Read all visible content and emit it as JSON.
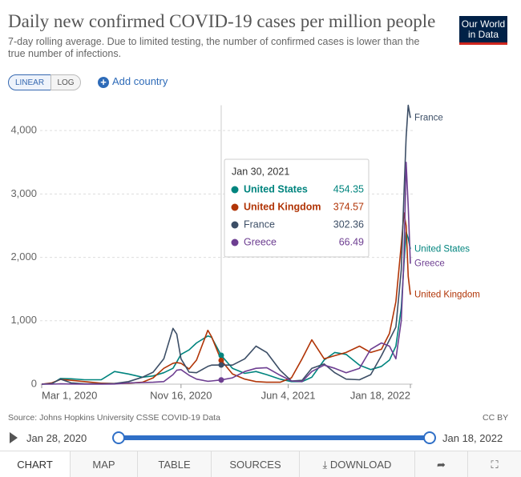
{
  "header": {
    "title": "Daily new confirmed COVID-19 cases per million people",
    "subtitle_lines": [
      "7-day rolling average. Due to limited testing, the number of confirmed cases is lower than the",
      "true number of infections."
    ],
    "logo": [
      "Our World",
      "in Data"
    ]
  },
  "controls": {
    "scale_buttons": [
      "LINEAR",
      "LOG"
    ],
    "add_country": "Add country"
  },
  "chart_data": {
    "type": "line",
    "x": [
      "Mar 1, 2020",
      "Mar 20, 2020",
      "Apr 5, 2020",
      "Apr 25, 2020",
      "May 20, 2020",
      "Jun 20, 2020",
      "Jul 15, 2020",
      "Aug 10, 2020",
      "Sep 5, 2020",
      "Sep 25, 2020",
      "Oct 15, 2020",
      "Nov 1, 2020",
      "Nov 8, 2020",
      "Nov 16, 2020",
      "Dec 1, 2020",
      "Dec 15, 2020",
      "Jan 5, 2021",
      "Jan 12, 2021",
      "Jan 30, 2021",
      "Feb 20, 2021",
      "Mar 15, 2021",
      "Apr 5, 2021",
      "Apr 25, 2021",
      "May 20, 2021",
      "Jun 10, 2021",
      "Jun 30, 2021",
      "Jul 18, 2021",
      "Aug 10, 2021",
      "Aug 30, 2021",
      "Sep 20, 2021",
      "Oct 15, 2021",
      "Nov 5, 2021",
      "Nov 25, 2021",
      "Dec 10, 2021",
      "Dec 22, 2021",
      "Jan 1, 2022",
      "Jan 6, 2022",
      "Jan 10, 2022",
      "Jan 14, 2022",
      "Jan 18, 2022"
    ],
    "series": [
      {
        "name": "United States",
        "color": "#00847e",
        "values": [
          0,
          5,
          90,
          85,
          70,
          70,
          200,
          160,
          110,
          130,
          180,
          250,
          350,
          470,
          540,
          650,
          760,
          740,
          454.35,
          250,
          170,
          200,
          150,
          80,
          40,
          40,
          110,
          380,
          500,
          470,
          300,
          230,
          280,
          380,
          600,
          1200,
          1900,
          2400,
          2300,
          2130
        ]
      },
      {
        "name": "United Kingdom",
        "color": "#b13507",
        "values": [
          0,
          20,
          75,
          60,
          40,
          15,
          10,
          15,
          30,
          100,
          250,
          330,
          340,
          330,
          240,
          380,
          850,
          750,
          374.57,
          160,
          80,
          40,
          30,
          30,
          100,
          400,
          700,
          400,
          450,
          500,
          600,
          500,
          550,
          800,
          1300,
          2200,
          2700,
          2500,
          1700,
          1410
        ]
      },
      {
        "name": "France",
        "color": "#3c4e66",
        "values": [
          0,
          10,
          80,
          20,
          5,
          5,
          10,
          40,
          110,
          190,
          400,
          880,
          790,
          400,
          190,
          180,
          280,
          300,
          302.36,
          300,
          400,
          600,
          500,
          220,
          50,
          60,
          250,
          320,
          180,
          80,
          70,
          150,
          450,
          700,
          900,
          1800,
          3000,
          3900,
          4400,
          4200
        ]
      },
      {
        "name": "Greece",
        "color": "#6d3e91",
        "values": [
          0,
          0,
          5,
          2,
          1,
          1,
          2,
          20,
          25,
          30,
          40,
          150,
          220,
          230,
          140,
          80,
          45,
          50,
          66.49,
          100,
          200,
          250,
          260,
          140,
          50,
          40,
          200,
          300,
          250,
          180,
          250,
          550,
          650,
          600,
          400,
          1000,
          2000,
          3500,
          2800,
          1900
        ]
      }
    ],
    "xlim": [
      "Mar 1, 2020",
      "Jan 18, 2022"
    ],
    "xticks": [
      "Mar 1, 2020",
      "Nov 16, 2020",
      "Jun 4, 2021",
      "Jan 18, 2022"
    ],
    "ylim": [
      0,
      4400
    ],
    "yticks": [
      0,
      {
        "value": 1000,
        "label": "1,000"
      },
      {
        "value": 2000,
        "label": "2,000"
      },
      {
        "value": 3000,
        "label": "3,000"
      },
      {
        "value": 4000,
        "label": "4,000"
      }
    ],
    "grid": true,
    "tooltip": {
      "date": "Jan 30, 2021"
    }
  },
  "footer": {
    "source": "Source: Johns Hopkins University CSSE COVID-19 Data",
    "license": "CC BY",
    "timeline": {
      "start": "Jan 28, 2020",
      "end": "Jan 18, 2022"
    }
  },
  "tabs": [
    "CHART",
    "MAP",
    "TABLE",
    "SOURCES",
    "DOWNLOAD"
  ]
}
